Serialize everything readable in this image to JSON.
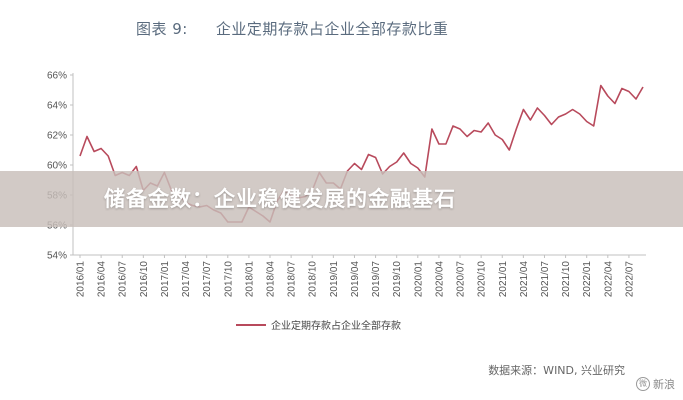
{
  "figure": {
    "number_label": "图表 9:",
    "title": "企业定期存款占企业全部存款比重"
  },
  "overlay_title": "储备金数：企业稳健发展的金融基石",
  "source": "数据来源：WIND, 兴业研究",
  "watermark": {
    "text": "新浪",
    "logo": "微"
  },
  "colors": {
    "series": "#b84a5c",
    "axis": "#c0c0c0",
    "overlay": "#c8beb9"
  },
  "chart_data": {
    "type": "line",
    "ylim": [
      54,
      66
    ],
    "yticks": [
      "66%",
      "64%",
      "62%",
      "60%",
      "58%",
      "56%",
      "54%"
    ],
    "ytick_values": [
      66,
      64,
      62,
      60,
      58,
      56,
      54
    ],
    "xtick_labels": [
      "2016/01",
      "2016/04",
      "2016/07",
      "2016/10",
      "2017/01",
      "2017/04",
      "2017/07",
      "2017/10",
      "2018/01",
      "2018/04",
      "2018/07",
      "2018/10",
      "2019/01",
      "2019/04",
      "2019/07",
      "2019/10",
      "2020/01",
      "2020/04",
      "2020/07",
      "2020/10",
      "2021/01",
      "2021/04",
      "2021/07",
      "2021/10",
      "2022/01",
      "2022/04",
      "2022/07"
    ],
    "grid": false,
    "legend_position": "bottom",
    "series": [
      {
        "name": "企业定期存款占企业全部存款",
        "values": [
          60.6,
          61.9,
          60.9,
          61.1,
          60.6,
          59.3,
          59.5,
          59.3,
          59.9,
          58.3,
          58.8,
          58.6,
          59.5,
          58.3,
          58.1,
          57.5,
          57.3,
          57.2,
          57.3,
          57.0,
          56.8,
          56.2,
          56.2,
          56.2,
          57.2,
          56.9,
          56.6,
          56.2,
          57.6,
          58.3,
          58.0,
          57.8,
          57.9,
          58.3,
          59.5,
          58.8,
          58.8,
          58.4,
          59.6,
          60.1,
          59.7,
          60.7,
          60.5,
          59.4,
          59.9,
          60.2,
          60.8,
          60.1,
          59.8,
          59.2,
          62.4,
          61.4,
          61.4,
          62.6,
          62.4,
          61.9,
          62.3,
          62.2,
          62.8,
          62.0,
          61.7,
          61.0,
          62.4,
          63.7,
          63.0,
          63.8,
          63.3,
          62.7,
          63.2,
          63.4,
          63.7,
          63.4,
          62.9,
          62.6,
          65.3,
          64.6,
          64.1,
          65.1,
          64.9,
          64.4,
          65.2
        ]
      }
    ]
  }
}
